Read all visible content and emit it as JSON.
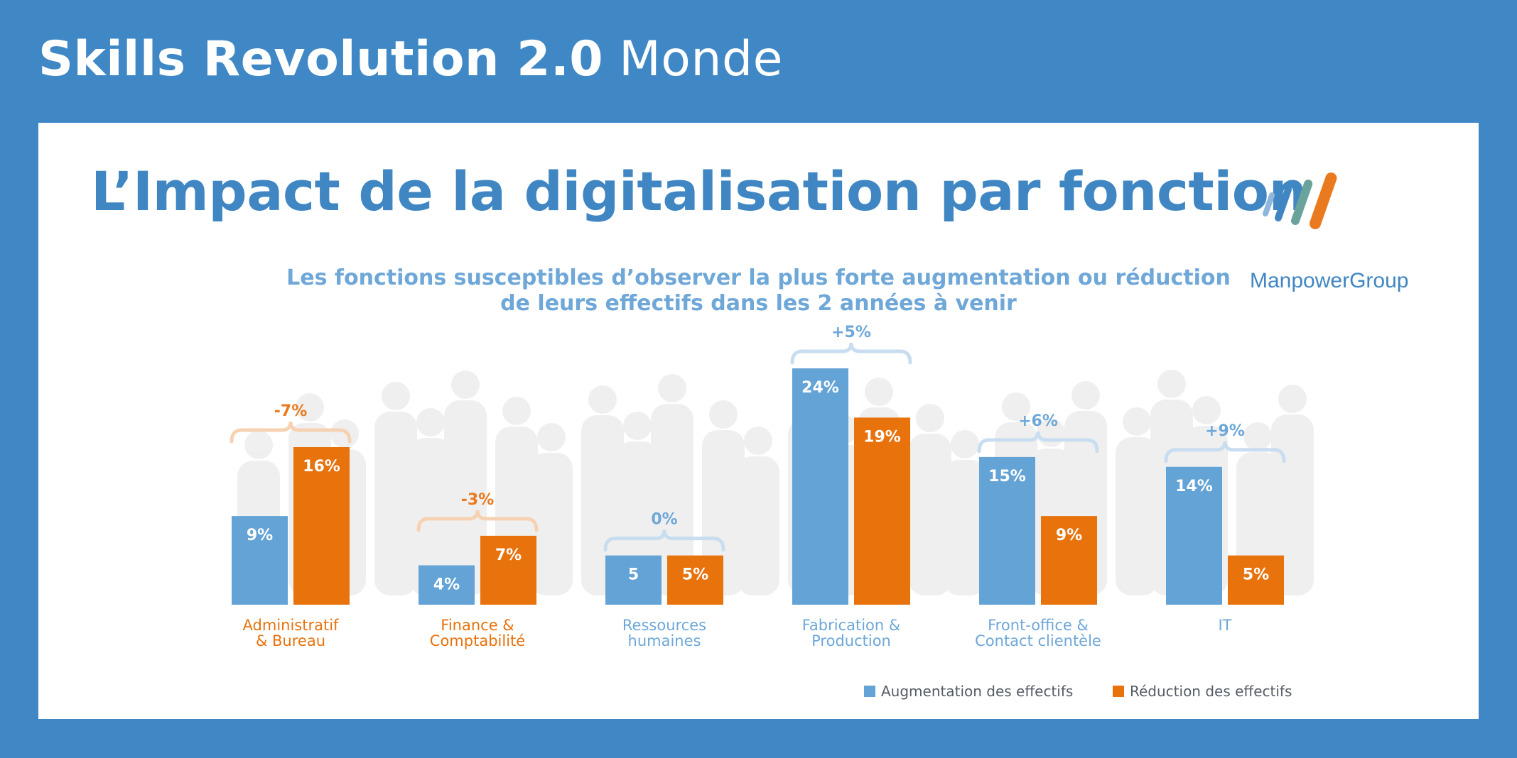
{
  "header": {
    "title": "Skills Revolution 2.0",
    "region": "Monde"
  },
  "brand": {
    "logo_text": "ManpowerGroup",
    "logo_colors": [
      "#8fb6dd",
      "#3f86c2",
      "#6aa39b",
      "#ea7a1f"
    ]
  },
  "colors": {
    "background": "#3f88c5",
    "title": "#3f86c2",
    "subtitle": "#6ea7d8",
    "increase": "#63a3d6",
    "decrease": "#e8720c",
    "diff_positive": "#6ea7d8",
    "diff_negative": "#ea7a1f"
  },
  "chart_data": {
    "type": "bar",
    "title": "L’Impact de la digitalisation par fonction",
    "subtitle_lines": [
      "Les fonctions susceptibles d’observer la plus forte augmentation ou réduction",
      "de leurs effectifs dans les 2 années à venir"
    ],
    "categories": [
      [
        "Administratif",
        "& Bureau"
      ],
      [
        "Finance &",
        "Comptabilité"
      ],
      [
        "Ressources",
        "humaines"
      ],
      [
        "Fabrication &",
        "Production"
      ],
      [
        "Front-office &",
        "Contact clientèle"
      ],
      [
        "IT"
      ]
    ],
    "category_label_colors": [
      "#e8720c",
      "#e8720c",
      "#6ea7d8",
      "#6ea7d8",
      "#6ea7d8",
      "#6ea7d8"
    ],
    "series": [
      {
        "name": "Augmentation des effectifs",
        "values": [
          9,
          4,
          5,
          24,
          15,
          14
        ],
        "labels": [
          "9%",
          "4%",
          "5",
          "24%",
          "15%",
          "14%"
        ]
      },
      {
        "name": "Réduction des effectifs",
        "values": [
          16,
          7,
          5,
          19,
          9,
          5
        ],
        "labels": [
          "16%",
          "7%",
          "5%",
          "19%",
          "9%",
          "5%"
        ]
      }
    ],
    "differences": [
      "-7%",
      "-3%",
      "0%",
      "+5%",
      "+6%",
      "+9%"
    ],
    "ylim": [
      0,
      24
    ],
    "grid": false,
    "legend": "bottom-right"
  }
}
